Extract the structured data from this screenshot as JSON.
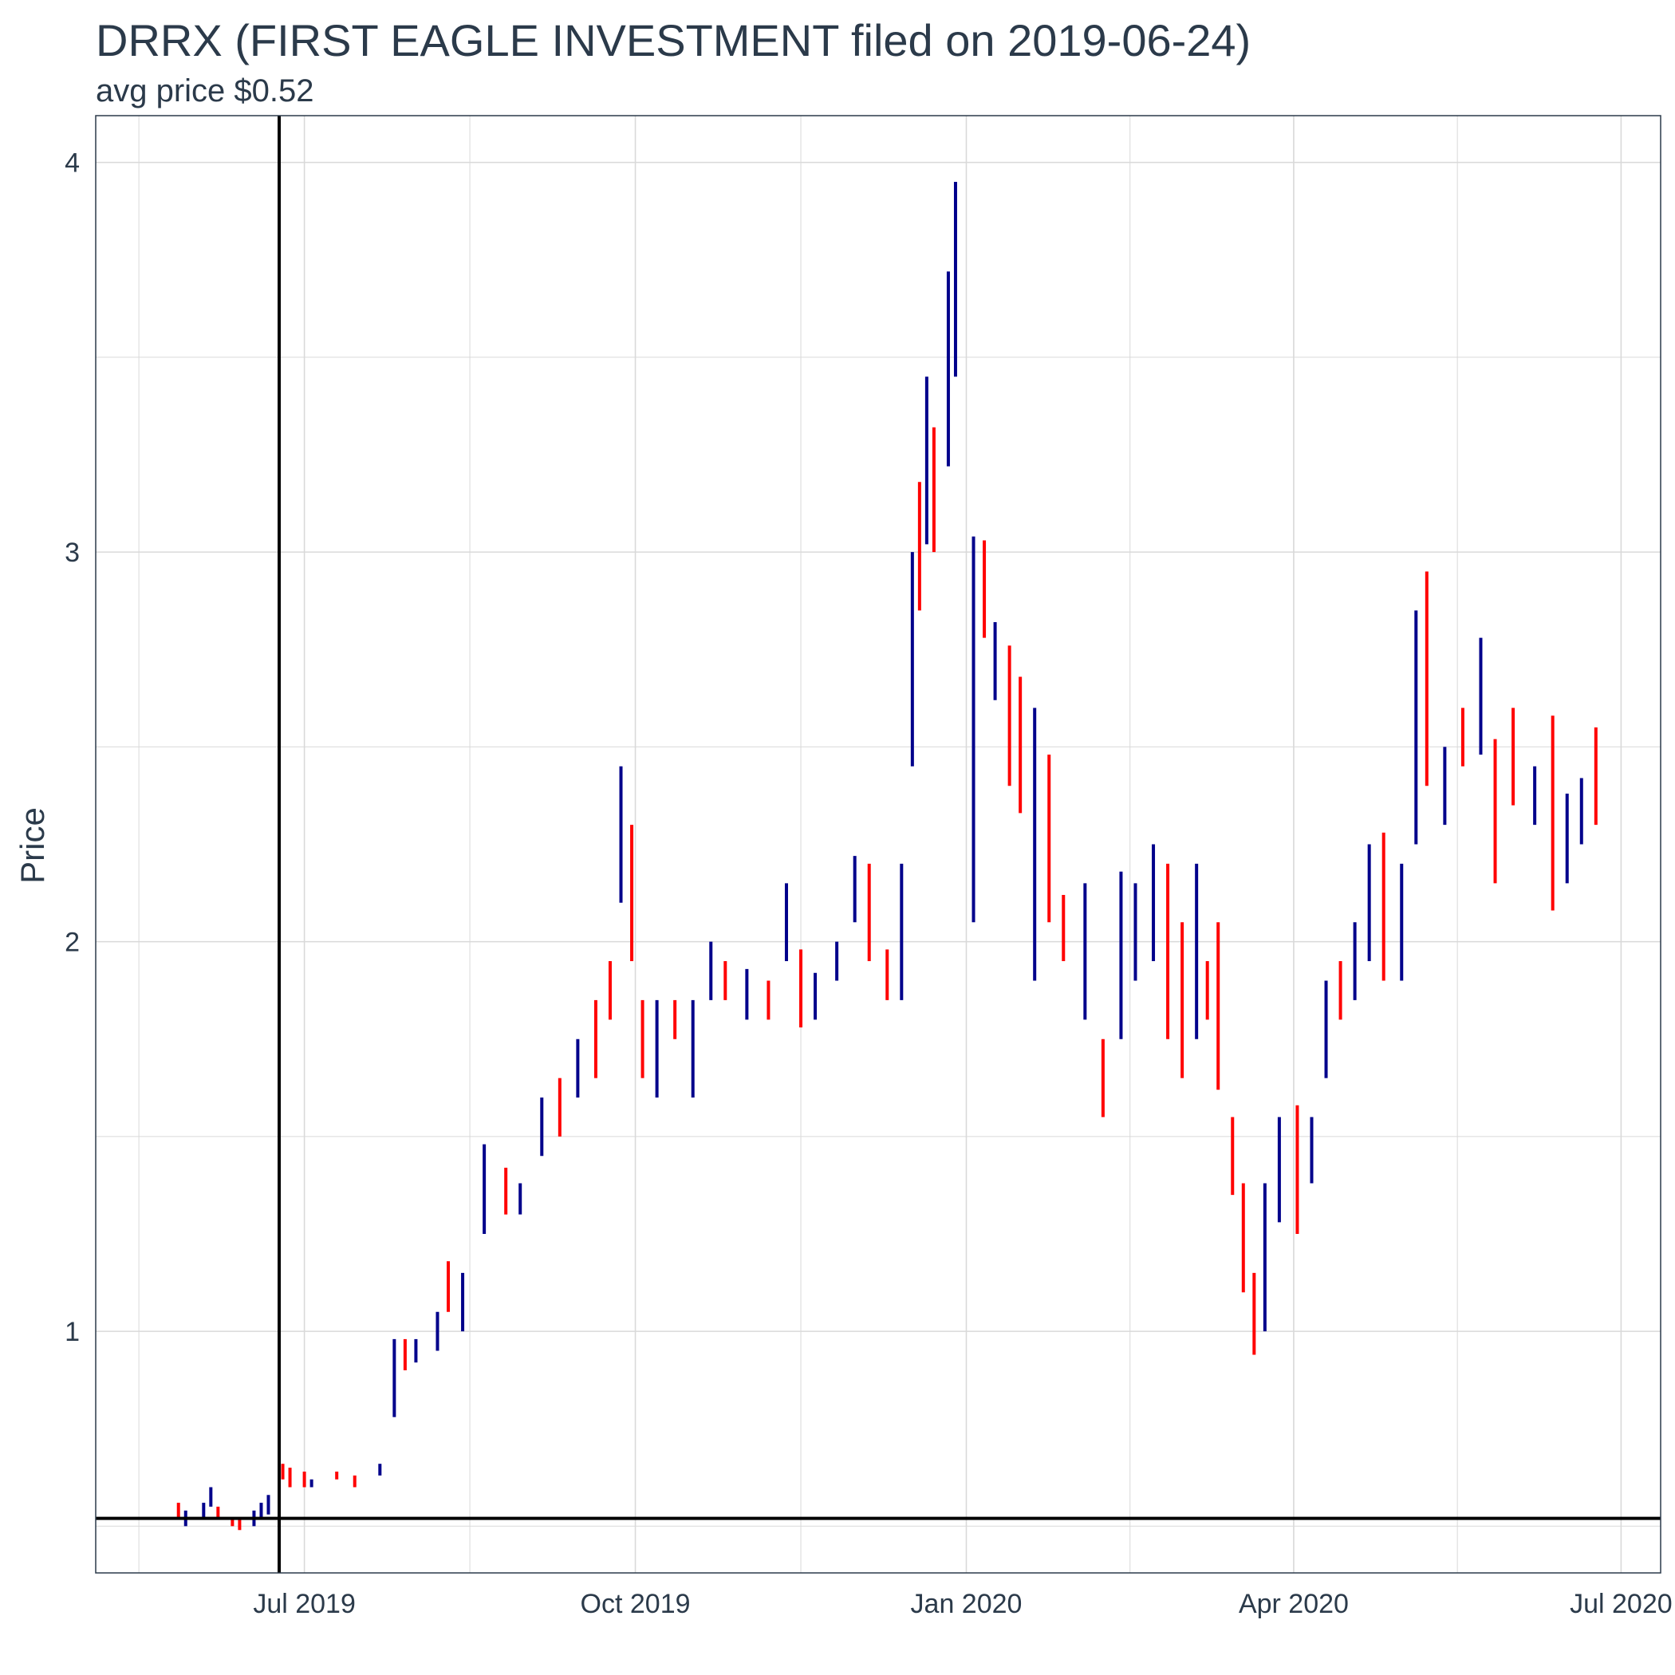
{
  "chart_data": {
    "type": "ohlc",
    "title": "DRRX (FIRST EAGLE INVESTMENT  filed on 2019-06-24)",
    "subtitle": "avg price $0.52",
    "xlabel": "",
    "ylabel": "Price",
    "x_ticks": [
      "Jul 2019",
      "Oct 2019",
      "Jan 2020",
      "Apr 2020",
      "Jul 2020"
    ],
    "x_tick_dates": [
      "2019-07-01",
      "2019-10-01",
      "2020-01-01",
      "2020-04-01",
      "2020-07-01"
    ],
    "y_ticks": [
      1,
      2,
      3,
      4
    ],
    "xlim": [
      "2019-05-04",
      "2020-07-12"
    ],
    "ylim": [
      0.38,
      4.12
    ],
    "grid": true,
    "reference_lines": {
      "filing_date": "2019-06-24",
      "avg_price": 0.52
    },
    "colors": {
      "up": "#00008b",
      "down": "#ff0000",
      "reference": "#000000",
      "grid": "#d9d9d9",
      "text": "#2b3a4a"
    },
    "series": [
      {
        "name": "",
        "points": [
          [
            "2019-05-27",
            0.56,
            0.52,
            "down"
          ],
          [
            "2019-05-29",
            0.54,
            0.5,
            "up"
          ],
          [
            "2019-06-03",
            0.56,
            0.52,
            "up"
          ],
          [
            "2019-06-05",
            0.6,
            0.55,
            "up"
          ],
          [
            "2019-06-07",
            0.55,
            0.52,
            "down"
          ],
          [
            "2019-06-11",
            0.52,
            0.5,
            "down"
          ],
          [
            "2019-06-13",
            0.52,
            0.49,
            "down"
          ],
          [
            "2019-06-17",
            0.54,
            0.5,
            "up"
          ],
          [
            "2019-06-19",
            0.56,
            0.52,
            "up"
          ],
          [
            "2019-06-21",
            0.58,
            0.53,
            "up"
          ],
          [
            "2019-06-25",
            0.66,
            0.62,
            "down"
          ],
          [
            "2019-06-27",
            0.65,
            0.6,
            "down"
          ],
          [
            "2019-07-01",
            0.64,
            0.6,
            "down"
          ],
          [
            "2019-07-03",
            0.62,
            0.6,
            "up"
          ],
          [
            "2019-07-10",
            0.64,
            0.62,
            "down"
          ],
          [
            "2019-07-15",
            0.63,
            0.6,
            "down"
          ],
          [
            "2019-07-22",
            0.66,
            0.63,
            "up"
          ],
          [
            "2019-07-26",
            0.98,
            0.78,
            "up"
          ],
          [
            "2019-07-29",
            0.98,
            0.9,
            "down"
          ],
          [
            "2019-08-01",
            0.98,
            0.92,
            "up"
          ],
          [
            "2019-08-07",
            1.05,
            0.95,
            "up"
          ],
          [
            "2019-08-10",
            1.18,
            1.05,
            "down"
          ],
          [
            "2019-08-14",
            1.15,
            1.0,
            "up"
          ],
          [
            "2019-08-20",
            1.48,
            1.25,
            "up"
          ],
          [
            "2019-08-26",
            1.42,
            1.3,
            "down"
          ],
          [
            "2019-08-30",
            1.38,
            1.3,
            "up"
          ],
          [
            "2019-09-05",
            1.6,
            1.45,
            "up"
          ],
          [
            "2019-09-10",
            1.65,
            1.5,
            "down"
          ],
          [
            "2019-09-15",
            1.75,
            1.6,
            "up"
          ],
          [
            "2019-09-20",
            1.85,
            1.65,
            "down"
          ],
          [
            "2019-09-24",
            1.95,
            1.8,
            "down"
          ],
          [
            "2019-09-27",
            2.45,
            2.1,
            "up"
          ],
          [
            "2019-09-30",
            2.3,
            1.95,
            "down"
          ],
          [
            "2019-10-03",
            1.85,
            1.65,
            "down"
          ],
          [
            "2019-10-07",
            1.85,
            1.6,
            "up"
          ],
          [
            "2019-10-12",
            1.85,
            1.75,
            "down"
          ],
          [
            "2019-10-17",
            1.85,
            1.6,
            "up"
          ],
          [
            "2019-10-22",
            2.0,
            1.85,
            "up"
          ],
          [
            "2019-10-26",
            1.95,
            1.85,
            "down"
          ],
          [
            "2019-11-01",
            1.93,
            1.8,
            "up"
          ],
          [
            "2019-11-07",
            1.9,
            1.8,
            "down"
          ],
          [
            "2019-11-12",
            2.15,
            1.95,
            "up"
          ],
          [
            "2019-11-16",
            1.98,
            1.78,
            "down"
          ],
          [
            "2019-11-20",
            1.92,
            1.8,
            "up"
          ],
          [
            "2019-11-26",
            2.0,
            1.9,
            "up"
          ],
          [
            "2019-12-01",
            2.22,
            2.05,
            "up"
          ],
          [
            "2019-12-05",
            2.2,
            1.95,
            "down"
          ],
          [
            "2019-12-10",
            1.98,
            1.85,
            "down"
          ],
          [
            "2019-12-14",
            2.2,
            1.85,
            "up"
          ],
          [
            "2019-12-17",
            3.0,
            2.45,
            "up"
          ],
          [
            "2019-12-19",
            3.18,
            2.85,
            "down"
          ],
          [
            "2019-12-21",
            3.45,
            3.02,
            "up"
          ],
          [
            "2019-12-23",
            3.32,
            3.0,
            "down"
          ],
          [
            "2019-12-27",
            3.72,
            3.22,
            "up"
          ],
          [
            "2019-12-29",
            3.95,
            3.45,
            "up"
          ],
          [
            "2020-01-03",
            3.04,
            2.05,
            "up"
          ],
          [
            "2020-01-06",
            3.03,
            2.78,
            "down"
          ],
          [
            "2020-01-09",
            2.82,
            2.62,
            "up"
          ],
          [
            "2020-01-13",
            2.76,
            2.4,
            "down"
          ],
          [
            "2020-01-16",
            2.68,
            2.33,
            "down"
          ],
          [
            "2020-01-20",
            2.6,
            1.9,
            "up"
          ],
          [
            "2020-01-24",
            2.48,
            2.05,
            "down"
          ],
          [
            "2020-01-28",
            2.12,
            1.95,
            "down"
          ],
          [
            "2020-02-03",
            2.15,
            1.8,
            "up"
          ],
          [
            "2020-02-08",
            1.75,
            1.55,
            "down"
          ],
          [
            "2020-02-13",
            2.18,
            1.75,
            "up"
          ],
          [
            "2020-02-17",
            2.15,
            1.9,
            "up"
          ],
          [
            "2020-02-22",
            2.25,
            1.95,
            "up"
          ],
          [
            "2020-02-26",
            2.2,
            1.75,
            "down"
          ],
          [
            "2020-03-01",
            2.05,
            1.65,
            "down"
          ],
          [
            "2020-03-05",
            2.2,
            1.75,
            "up"
          ],
          [
            "2020-03-08",
            1.95,
            1.8,
            "down"
          ],
          [
            "2020-03-11",
            2.05,
            1.62,
            "down"
          ],
          [
            "2020-03-15",
            1.55,
            1.35,
            "down"
          ],
          [
            "2020-03-18",
            1.38,
            1.1,
            "down"
          ],
          [
            "2020-03-21",
            1.15,
            0.94,
            "down"
          ],
          [
            "2020-03-24",
            1.38,
            1.0,
            "up"
          ],
          [
            "2020-03-28",
            1.55,
            1.28,
            "up"
          ],
          [
            "2020-04-02",
            1.58,
            1.25,
            "down"
          ],
          [
            "2020-04-06",
            1.55,
            1.38,
            "up"
          ],
          [
            "2020-04-10",
            1.9,
            1.65,
            "up"
          ],
          [
            "2020-04-14",
            1.95,
            1.8,
            "down"
          ],
          [
            "2020-04-18",
            2.05,
            1.85,
            "up"
          ],
          [
            "2020-04-22",
            2.25,
            1.95,
            "up"
          ],
          [
            "2020-04-26",
            2.28,
            1.9,
            "down"
          ],
          [
            "2020-05-01",
            2.2,
            1.9,
            "up"
          ],
          [
            "2020-05-05",
            2.85,
            2.25,
            "up"
          ],
          [
            "2020-05-08",
            2.95,
            2.4,
            "down"
          ],
          [
            "2020-05-13",
            2.5,
            2.3,
            "up"
          ],
          [
            "2020-05-18",
            2.6,
            2.45,
            "down"
          ],
          [
            "2020-05-23",
            2.78,
            2.48,
            "up"
          ],
          [
            "2020-05-27",
            2.52,
            2.15,
            "down"
          ],
          [
            "2020-06-01",
            2.6,
            2.35,
            "down"
          ],
          [
            "2020-06-07",
            2.45,
            2.3,
            "up"
          ],
          [
            "2020-06-12",
            2.58,
            2.08,
            "down"
          ],
          [
            "2020-06-16",
            2.38,
            2.15,
            "up"
          ],
          [
            "2020-06-20",
            2.42,
            2.25,
            "up"
          ],
          [
            "2020-06-24",
            2.55,
            2.3,
            "down"
          ]
        ]
      }
    ]
  }
}
